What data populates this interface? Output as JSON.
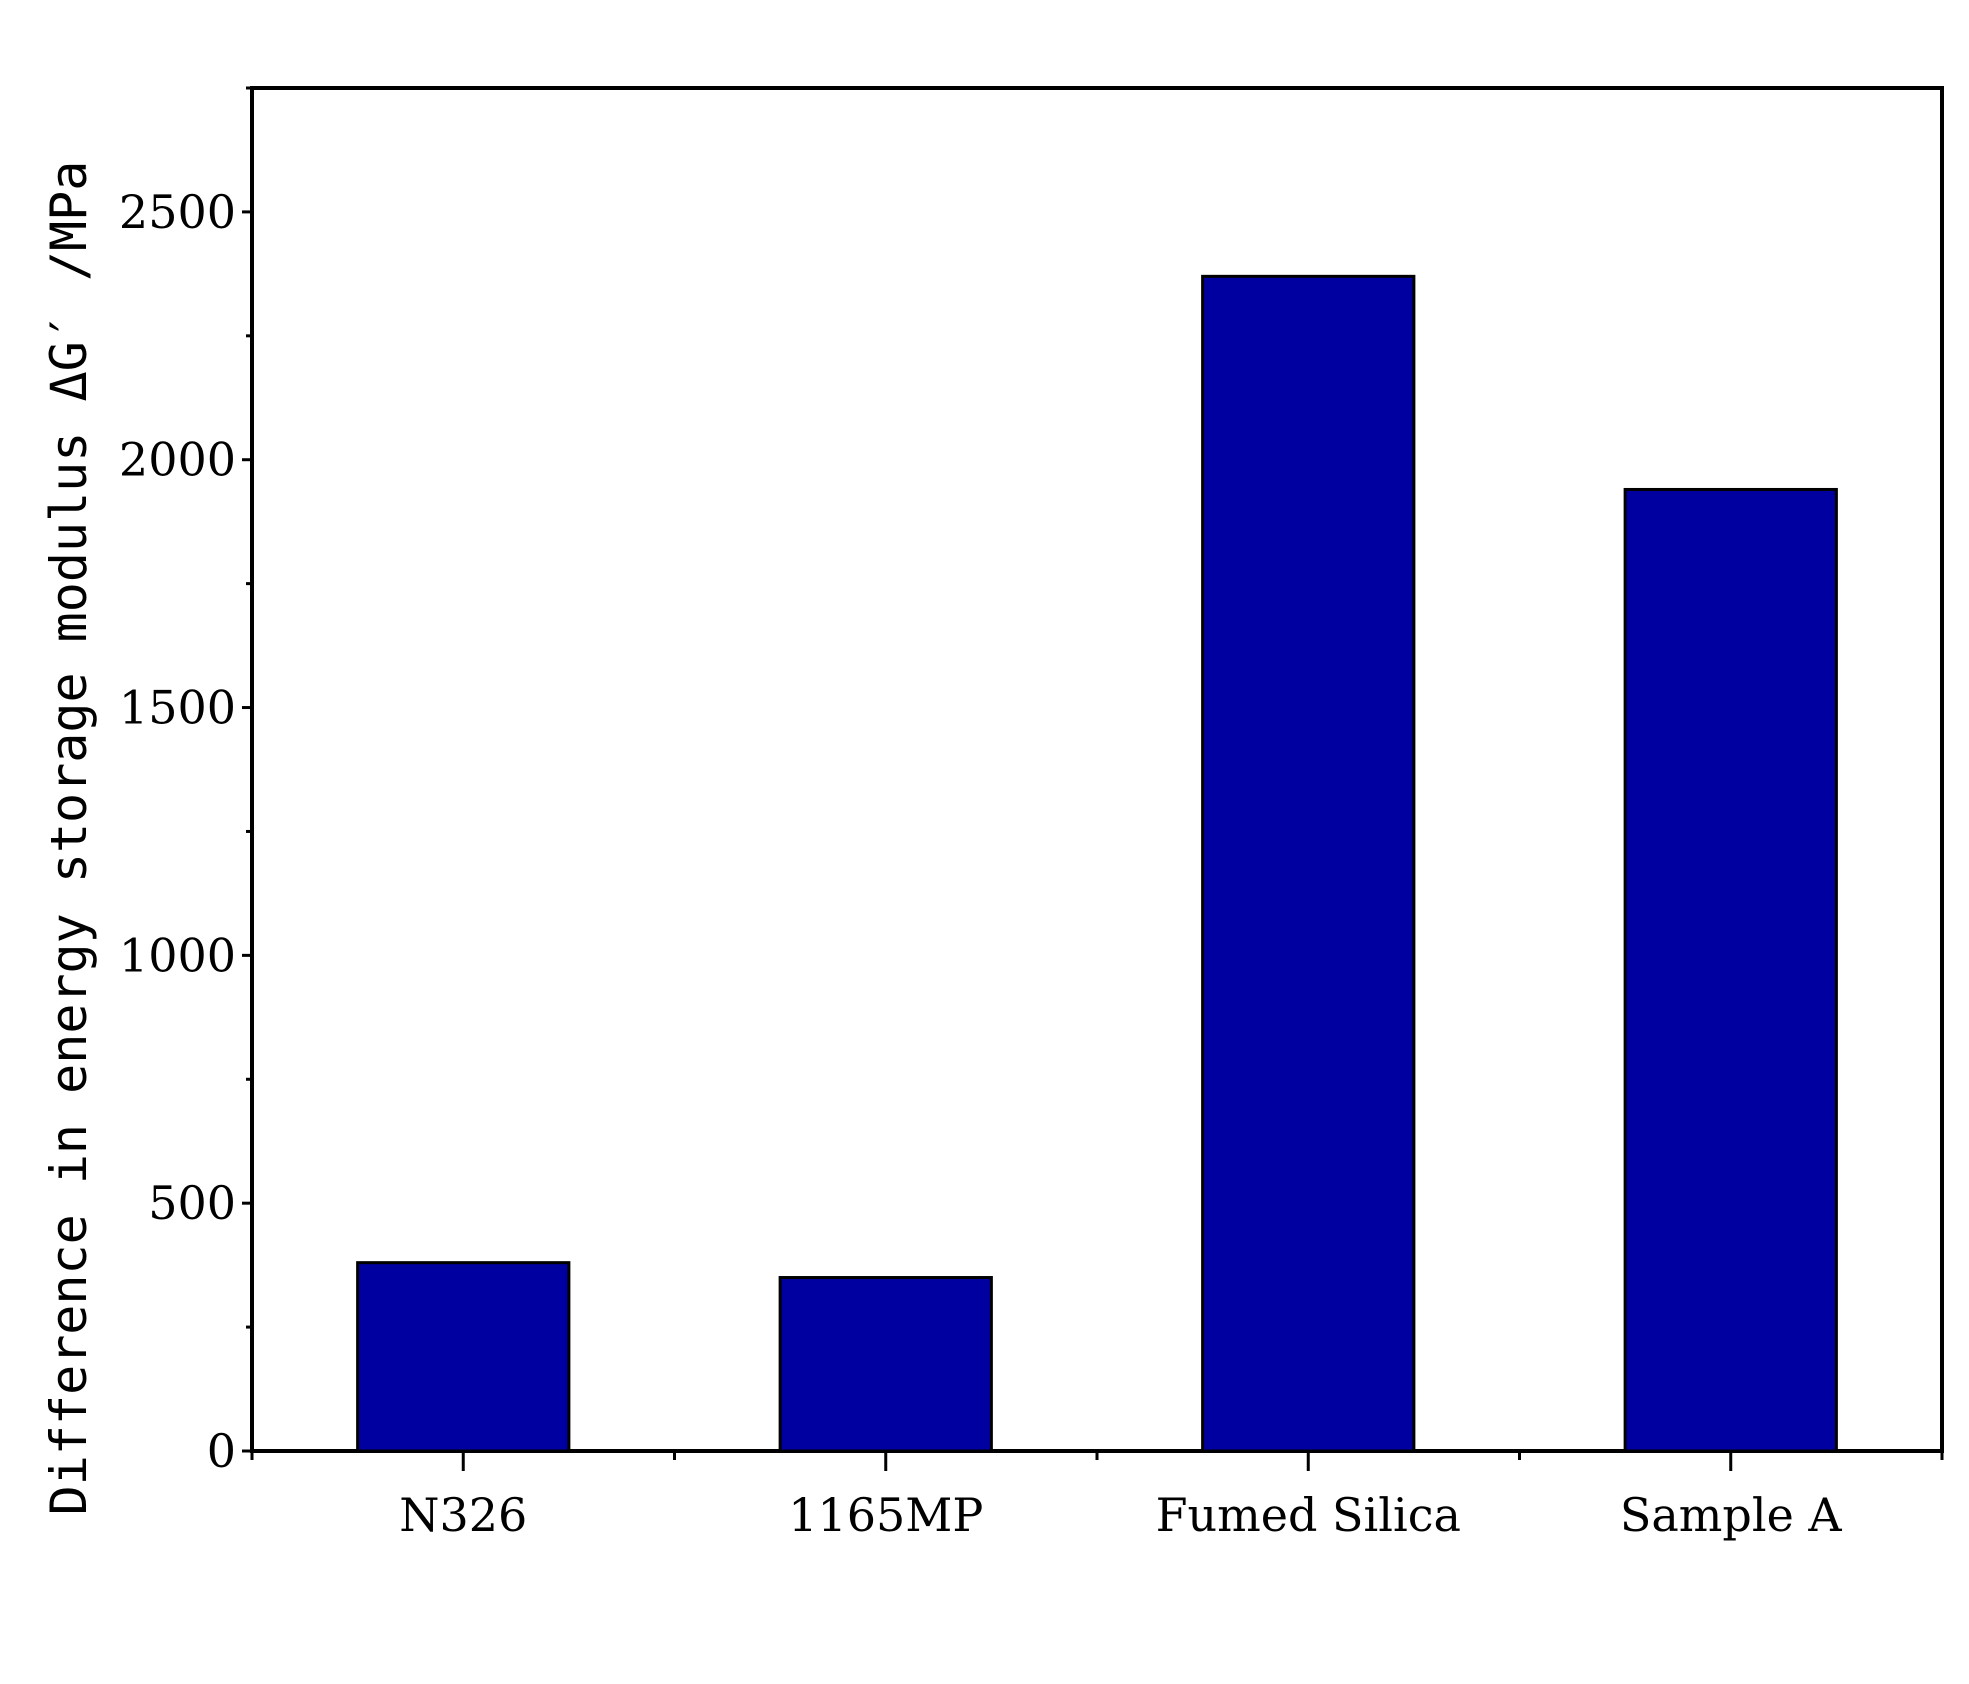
{
  "chart_data": {
    "type": "bar",
    "title": "",
    "xlabel": "",
    "ylabel": "Difference in energy storage modulus ΔG′ /MPa",
    "categories": [
      "N326",
      "1165MP",
      "Fumed Silica",
      "Sample A"
    ],
    "values": [
      380,
      350,
      2370,
      1940
    ],
    "ylim": [
      0,
      2750
    ],
    "yticks": [
      "0",
      "500",
      "1000",
      "1500",
      "2000",
      "2500"
    ],
    "grid": false,
    "legend": "none",
    "bar_color": "#0000a0",
    "bar_edge_color": "#000000"
  }
}
